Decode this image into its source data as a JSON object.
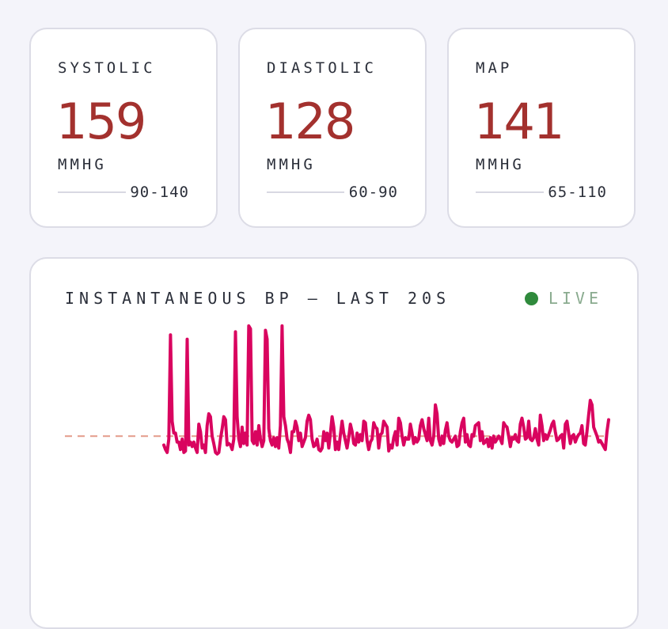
{
  "cards": [
    {
      "label": "SYSTOLIC",
      "value": "159",
      "unit": "MMHG",
      "range": "90-140"
    },
    {
      "label": "DIASTOLIC",
      "value": "128",
      "unit": "MMHG",
      "range": "60-90"
    },
    {
      "label": "MAP",
      "value": "141",
      "unit": "MMHG",
      "range": "65-110"
    }
  ],
  "chart": {
    "title": "INSTANTANEOUS BP — LAST 20S",
    "live_label": "LIVE"
  },
  "colors": {
    "accent_value": "#a3312e",
    "trace": "#d9045f",
    "reference_line": "#e49b8a",
    "live": "#2f8a3c",
    "background": "#f4f4fa"
  },
  "chart_data": {
    "type": "line",
    "xlabel": "",
    "ylabel": "",
    "reference_value": 110,
    "ylim": [
      40,
      185
    ],
    "series": [
      {
        "values": [
          104,
          101,
          99,
          108,
          178,
          120,
          112,
          112,
          106,
          106,
          101,
          108,
          99,
          100,
          175,
          104,
          106,
          103,
          106,
          102,
          99,
          118,
          113,
          102,
          104,
          99,
          117,
          125,
          123,
          110,
          105,
          99,
          98,
          99,
          108,
          115,
          123,
          121,
          104,
          105,
          104,
          101,
          108,
          180,
          123,
          108,
          103,
          116,
          105,
          112,
          104,
          184,
          182,
          107,
          105,
          113,
          104,
          117,
          108,
          103,
          107,
          181,
          175,
          115,
          107,
          104,
          109,
          103,
          109,
          102,
          117,
          184,
          123,
          117,
          108,
          105,
          99,
          113,
          113,
          120,
          116,
          107,
          112,
          103,
          106,
          109,
          120,
          124,
          121,
          108,
          103,
          104,
          108,
          101,
          100,
          102,
          113,
          107,
          112,
          102,
          112,
          123,
          116,
          101,
          106,
          101,
          111,
          120,
          112,
          107,
          102,
          109,
          118,
          113,
          105,
          104,
          112,
          106,
          111,
          107,
          120,
          119,
          107,
          101,
          106,
          108,
          119,
          116,
          115,
          102,
          111,
          112,
          120,
          118,
          116,
          100,
          104,
          102,
          109,
          113,
          104,
          122,
          119,
          110,
          104,
          109,
          108,
          108,
          118,
          112,
          105,
          109,
          106,
          108,
          117,
          121,
          115,
          111,
          107,
          122,
          107,
          104,
          110,
          131,
          125,
          108,
          104,
          110,
          105,
          114,
          119,
          110,
          107,
          106,
          108,
          110,
          103,
          104,
          113,
          119,
          122,
          106,
          111,
          104,
          103,
          111,
          110,
          117,
          118,
          119,
          107,
          113,
          105,
          106,
          108,
          103,
          109,
          102,
          110,
          106,
          108,
          110,
          108,
          105,
          119,
          117,
          116,
          110,
          103,
          109,
          108,
          111,
          107,
          106,
          118,
          122,
          116,
          108,
          109,
          120,
          108,
          107,
          109,
          115,
          108,
          104,
          124,
          117,
          107,
          111,
          108,
          111,
          114,
          118,
          120,
          113,
          107,
          108,
          110,
          111,
          102,
          118,
          120,
          112,
          105,
          110,
          111,
          106,
          109,
          111,
          112,
          117,
          105,
          104,
          113,
          124,
          134,
          131,
          116,
          113,
          110,
          106,
          107,
          105,
          103,
          101,
          113,
          121
        ]
      }
    ]
  }
}
